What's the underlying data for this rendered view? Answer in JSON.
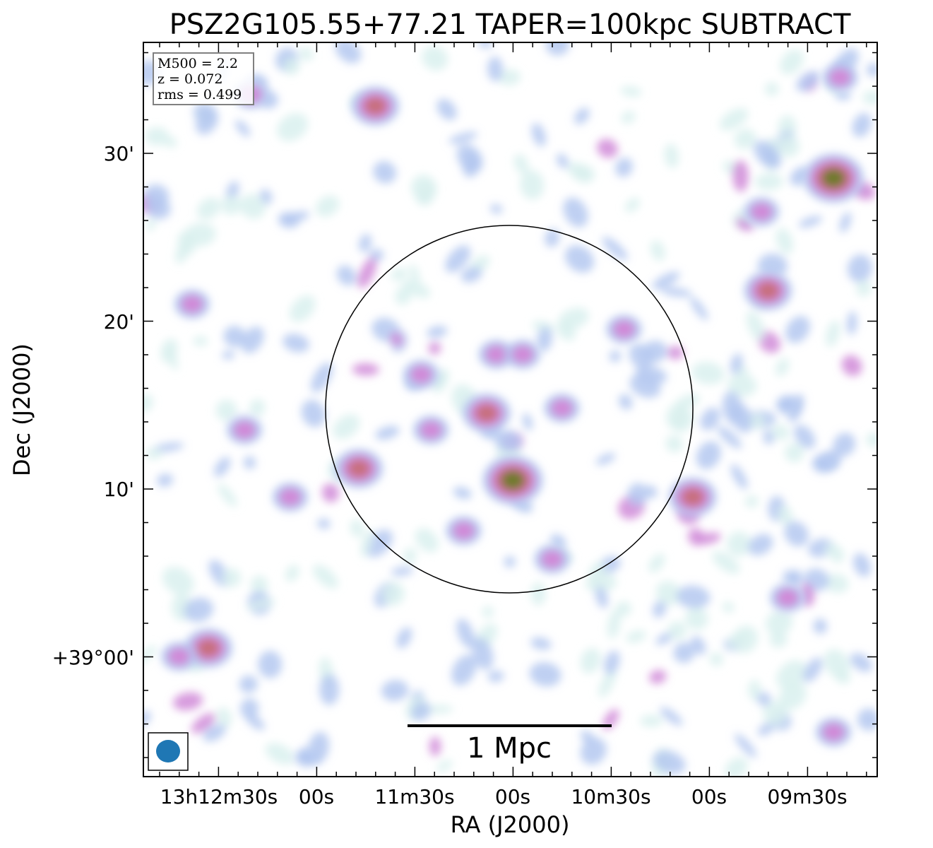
{
  "chart_data": {
    "type": "heatmap",
    "title": "PSZ2G105.55+77.21 TAPER=100kpc SUBTRACT",
    "xlabel": "RA (J2000)",
    "ylabel": "Dec (J2000)",
    "x_ticks": [
      "13h12m30s",
      "00s",
      "11m30s",
      "00s",
      "10m30s",
      "00s",
      "09m30s"
    ],
    "y_ticks": [
      "+39°00'",
      "10'",
      "20'",
      "30'"
    ],
    "info_box": {
      "line1": "M500 = 2.2",
      "line2": "z = 0.072",
      "line3": "rms = 0.499"
    },
    "scale_bar_label": "1 Mpc",
    "colormap": [
      "#d9f0ee",
      "#b4c8f0",
      "#d08ad8",
      "#c8707e",
      "#6e7a2a"
    ],
    "beam_color": "#1f77b4",
    "blobs": [
      {
        "ra": "13h11m08s",
        "dec": "+39°14.5'",
        "level": 3.2
      },
      {
        "ra": "13h11m00s",
        "dec": "+39°10.5'",
        "level": 4.3
      },
      {
        "ra": "13h11m25s",
        "dec": "+39°13.5'",
        "level": 2.4
      },
      {
        "ra": "13h10m45s",
        "dec": "+39°14.8'",
        "level": 2.2
      },
      {
        "ra": "13h11m05s",
        "dec": "+39°18.0'",
        "level": 2.4
      },
      {
        "ra": "13h10m57s",
        "dec": "+39°18.0'",
        "level": 2.6
      },
      {
        "ra": "13h11m28s",
        "dec": "+39°16.8'",
        "level": 2.1
      },
      {
        "ra": "13h11m47s",
        "dec": "+39°11.2'",
        "level": 3.0
      },
      {
        "ra": "13h10m05s",
        "dec": "+39°09.5'",
        "level": 3.1
      },
      {
        "ra": "13h09m42s",
        "dec": "+39°21.8'",
        "level": 3.1
      },
      {
        "ra": "13h09m44s",
        "dec": "+39°26.5'",
        "level": 2.2
      },
      {
        "ra": "13h09m22s",
        "dec": "+39°28.5'",
        "level": 4.0
      },
      {
        "ra": "13h11m42s",
        "dec": "+39°32.8'",
        "level": 3.0
      },
      {
        "ra": "13h12m33s",
        "dec": "+39°00.5'",
        "level": 3.2
      },
      {
        "ra": "13h12m38s",
        "dec": "+39°21.0'",
        "level": 2.6
      },
      {
        "ra": "13h12m20s",
        "dec": "+39°33.5'",
        "level": 2.3
      },
      {
        "ra": "13h12m08s",
        "dec": "+39°09.5'",
        "level": 2.2
      },
      {
        "ra": "13h12m22s",
        "dec": "+39°13.5'",
        "level": 2.2
      },
      {
        "ra": "13h11m15s",
        "dec": "+39°07.5'",
        "level": 2.1
      },
      {
        "ra": "13h10m48s",
        "dec": "+39°05.8'",
        "level": 2.2
      },
      {
        "ra": "13h09m22s",
        "dec": "+38°55.5'",
        "level": 2.2
      },
      {
        "ra": "13h10m26s",
        "dec": "+39°19.5'",
        "level": 2.2
      },
      {
        "ra": "13h09m36s",
        "dec": "+39°03.5'",
        "level": 2.1
      },
      {
        "ra": "13h09m25s",
        "dec": "+39°11.5'",
        "level": 1.9
      },
      {
        "ra": "13h09m36s",
        "dec": "+39°15.0'",
        "level": 1.9
      },
      {
        "ra": "13h09m20s",
        "dec": "+39°34.5'",
        "level": 2.0
      },
      {
        "ra": "13h12m42s",
        "dec": "+39°00.0'",
        "level": 2.0
      },
      {
        "ra": "13h12m03s",
        "dec": "+38°54.0'",
        "level": 1.9
      }
    ]
  }
}
